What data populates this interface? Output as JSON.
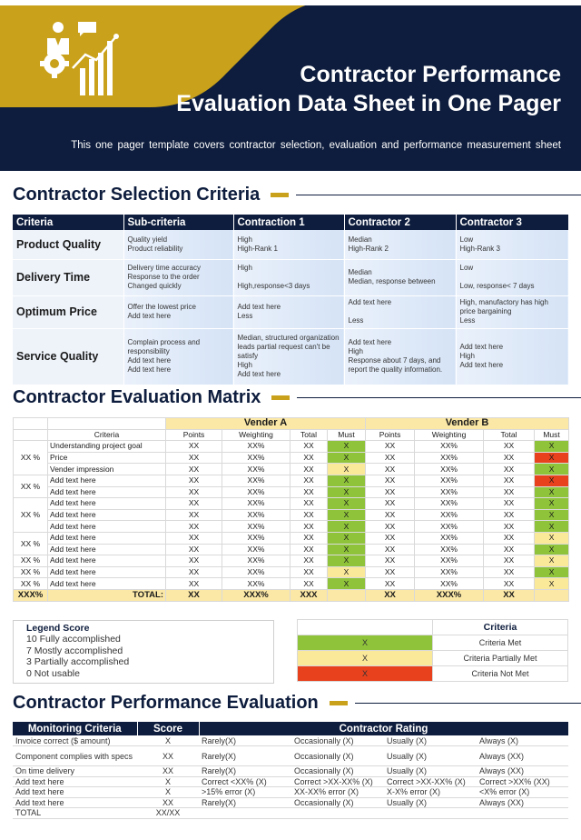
{
  "header": {
    "title_line1": "Contractor Performance",
    "title_line2": "Evaluation Data Sheet in One Pager",
    "subtitle": "This one pager template covers contractor selection, evaluation and performance measurement sheet",
    "icon": "contractor-performance-icon",
    "colors": {
      "navy": "#0e1d3d",
      "gold": "#c9a11a"
    }
  },
  "selection": {
    "heading": "Contractor Selection Criteria",
    "columns": [
      "Criteria",
      "Sub-criteria",
      "Contraction 1",
      "Contractor 2",
      "Contractor 3"
    ],
    "rows": [
      {
        "criteria": "Product Quality",
        "sub": [
          "Quality yield",
          "Product reliability"
        ],
        "c1": [
          "High",
          "High-Rank 1"
        ],
        "c2": [
          "Median",
          "High-Rank 2"
        ],
        "c3": [
          "Low",
          "High-Rank 3"
        ]
      },
      {
        "criteria": "Delivery Time",
        "sub": [
          "Delivery time accuracy",
          "Response to the order",
          "Changed quickly"
        ],
        "c1": [
          "High",
          "",
          "High,response<3 days"
        ],
        "c2": [
          "Median",
          "Median, response between"
        ],
        "c3": [
          "Low",
          "",
          "Low, response< 7 days"
        ]
      },
      {
        "criteria": "Optimum Price",
        "sub": [
          "Offer the lowest price",
          "Add text here"
        ],
        "c1": [
          "Add text here",
          "Less"
        ],
        "c2": [
          "Add text here",
          "",
          "Less"
        ],
        "c3": [
          "High, manufactory has high price bargaining",
          "Less"
        ]
      },
      {
        "criteria": "Service Quality",
        "sub": [
          "Complain process and responsibility",
          "Add text here",
          "Add text here"
        ],
        "c1": [
          "Median, structured organization leads partial request can't be satisfy",
          "High",
          "Add text here"
        ],
        "c2": [
          "Add text here",
          "High",
          "Response about 7 days, and report the quality information."
        ],
        "c3": [
          "Add text here",
          "High",
          "Add text here"
        ]
      }
    ]
  },
  "matrix": {
    "heading": "Contractor Evaluation Matrix",
    "vendor_a": "Vender A",
    "vendor_b": "Vender B",
    "criteria_label": "Criteria",
    "sub_columns": [
      "Points",
      "Weighting",
      "Total",
      "Must"
    ],
    "groups": [
      "XX %",
      "XX %",
      "XX %",
      "XX %",
      "XX %"
    ],
    "rows": [
      {
        "criteria": "Understanding project goal",
        "a": [
          "XX",
          "XX%",
          "XX",
          "X"
        ],
        "a_must": "green",
        "b": [
          "XX",
          "XX%",
          "XX",
          "X"
        ],
        "b_must": "green"
      },
      {
        "criteria": "Price",
        "a": [
          "XX",
          "XX%",
          "XX",
          "X"
        ],
        "a_must": "green",
        "b": [
          "XX",
          "XX%",
          "XX",
          "X"
        ],
        "b_must": "red"
      },
      {
        "criteria": "Vender impression",
        "a": [
          "XX",
          "XX%",
          "XX",
          "X"
        ],
        "a_must": "yellow",
        "b": [
          "XX",
          "XX%",
          "XX",
          "X"
        ],
        "b_must": "green"
      },
      {
        "criteria": "Add text here",
        "a": [
          "XX",
          "XX%",
          "XX",
          "X"
        ],
        "a_must": "green",
        "b": [
          "XX",
          "XX%",
          "XX",
          "X"
        ],
        "b_must": "red"
      },
      {
        "criteria": "Add text here",
        "a": [
          "XX",
          "XX%",
          "XX",
          "X"
        ],
        "a_must": "green",
        "b": [
          "XX",
          "XX%",
          "XX",
          "X"
        ],
        "b_must": "green"
      },
      {
        "criteria": "Add text here",
        "a": [
          "XX",
          "XX%",
          "XX",
          "X"
        ],
        "a_must": "green",
        "b": [
          "XX",
          "XX%",
          "XX",
          "X"
        ],
        "b_must": "green"
      },
      {
        "criteria": "Add text here",
        "a": [
          "XX",
          "XX%",
          "XX",
          "X"
        ],
        "a_must": "green",
        "b": [
          "XX",
          "XX%",
          "XX",
          "X"
        ],
        "b_must": "green"
      },
      {
        "criteria": "Add text here",
        "a": [
          "XX",
          "XX%",
          "XX",
          "X"
        ],
        "a_must": "green",
        "b": [
          "XX",
          "XX%",
          "XX",
          "X"
        ],
        "b_must": "green"
      },
      {
        "criteria": "Add text here",
        "a": [
          "XX",
          "XX%",
          "XX",
          "X"
        ],
        "a_must": "green",
        "b": [
          "XX",
          "XX%",
          "XX",
          "X"
        ],
        "b_must": "yellow"
      },
      {
        "criteria": "Add text here",
        "a": [
          "XX",
          "XX%",
          "XX",
          "X"
        ],
        "a_must": "green",
        "b": [
          "XX",
          "XX%",
          "XX",
          "X"
        ],
        "b_must": "green"
      },
      {
        "criteria": "Add text here",
        "a": [
          "XX",
          "XX%",
          "XX",
          "X"
        ],
        "a_must": "green",
        "b": [
          "XX",
          "XX%",
          "XX",
          "X"
        ],
        "b_must": "yellow"
      },
      {
        "criteria": "Add text here",
        "a": [
          "XX",
          "XX%",
          "XX",
          "X"
        ],
        "a_must": "yellow",
        "b": [
          "XX",
          "XX%",
          "XX",
          "X"
        ],
        "b_must": "green"
      },
      {
        "criteria": "Add text here",
        "a": [
          "XX",
          "XX%",
          "XX",
          "X"
        ],
        "a_must": "green",
        "b": [
          "XX",
          "XX%",
          "XX",
          "X"
        ],
        "b_must": "yellow"
      }
    ],
    "total_row": {
      "first": "XXX%",
      "label": "TOTAL:",
      "a": [
        "XX",
        "XXX%",
        "XXX"
      ],
      "b": [
        "XX",
        "XXX%",
        "XX"
      ]
    }
  },
  "legend": {
    "title": "Legend Score",
    "items": [
      "10 Fully accomplished",
      "7 Mostly accomplished",
      "3 Partially accomplished",
      "0 Not usable"
    ],
    "criteria_title": "Criteria",
    "criteria": [
      {
        "mark": "X",
        "color": "#8fc43a",
        "label": "Criteria Met"
      },
      {
        "mark": "X",
        "color": "#fbe99a",
        "label": "Criteria Partially Met"
      },
      {
        "mark": "X",
        "color": "#e8411d",
        "label": "Criteria Not Met"
      }
    ]
  },
  "performance": {
    "heading": "Contractor Performance Evaluation",
    "columns": {
      "monitoring": "Monitoring Criteria",
      "score": "Score",
      "rating": "Contractor Rating"
    },
    "rows": [
      {
        "criteria": "Invoice correct ($ amount)",
        "score": "X",
        "r": [
          "Rarely(X)",
          "Occasionally (X)",
          "Usually (X)",
          "Always (X)"
        ]
      },
      {
        "criteria": "Component complies with specs",
        "score": "XX",
        "r": [
          "Rarely(X)",
          "Occasionally (X)",
          "Usually (X)",
          "Always (XX)"
        ],
        "tall": true
      },
      {
        "criteria": "On time delivery",
        "score": "XX",
        "r": [
          "Rarely(X)",
          "Occasionally (X)",
          "Usually (X)",
          "Always (XX)"
        ]
      },
      {
        "criteria": "Add text here",
        "score": "X",
        "r": [
          "Correct <XX% (X)",
          "Correct >XX-XX% (X)",
          "Correct >XX-XX% (X)",
          "Correct >XX% (XX)"
        ]
      },
      {
        "criteria": "Add text here",
        "score": "X",
        "r": [
          ">15% error (X)",
          "XX-XX% error (X)",
          "X-X% error (X)",
          "<X% error (X)"
        ]
      },
      {
        "criteria": "Add text here",
        "score": "XX",
        "r": [
          "Rarely(X)",
          "Occasionally (X)",
          "Usually (X)",
          "Always (XX)"
        ]
      },
      {
        "criteria": "TOTAL",
        "score": "XX/XX",
        "r": [
          "",
          "",
          "",
          ""
        ]
      }
    ]
  }
}
